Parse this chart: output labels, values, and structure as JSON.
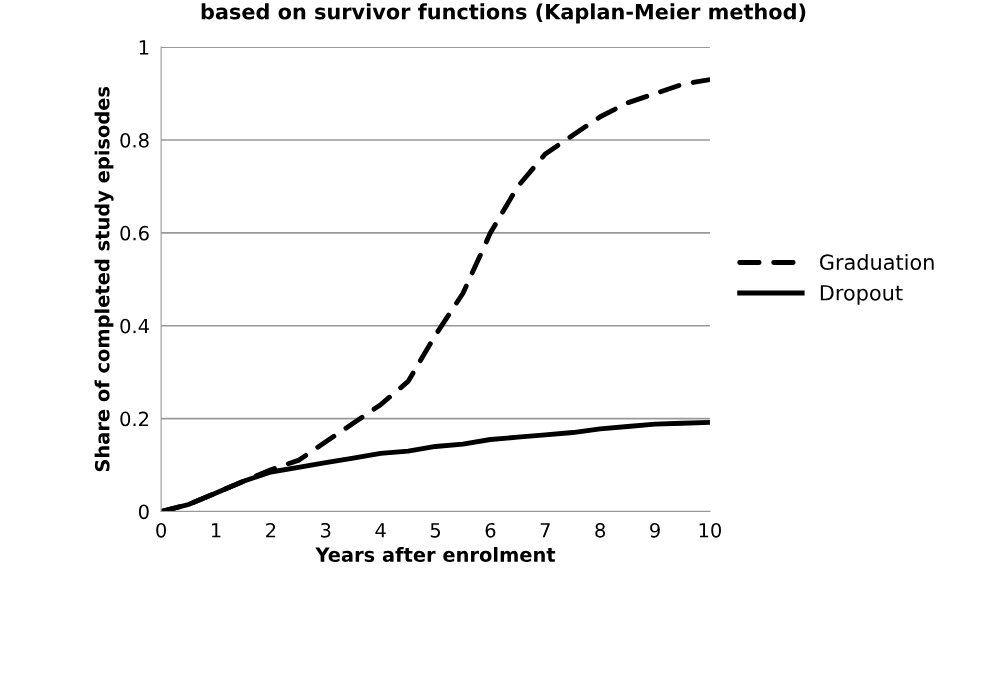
{
  "chart_data": {
    "type": "line",
    "title": "based on survivor functions (Kaplan-Meier method)",
    "xlabel": "Years after enrolment",
    "ylabel": "Share of completed study episodes",
    "xlim": [
      0,
      10
    ],
    "xticks": [
      0,
      1,
      2,
      3,
      4,
      5,
      6,
      7,
      8,
      9,
      10
    ],
    "ylim": [
      0,
      1
    ],
    "yticks": [
      0,
      0.2,
      0.4,
      0.6,
      0.8,
      1
    ],
    "grid": "y",
    "legend": "right",
    "marker": "none",
    "series": [
      {
        "name": "Graduation",
        "color": "#000000",
        "line_style": "dashed",
        "x": [
          0,
          0.5,
          1,
          1.5,
          2,
          2.5,
          3,
          3.5,
          4,
          4.5,
          5,
          5.5,
          6,
          6.5,
          7,
          7.5,
          8,
          8.5,
          9,
          9.5,
          10
        ],
        "values": [
          0,
          0.015,
          0.04,
          0.065,
          0.09,
          0.11,
          0.15,
          0.19,
          0.23,
          0.28,
          0.38,
          0.47,
          0.6,
          0.7,
          0.77,
          0.81,
          0.85,
          0.88,
          0.9,
          0.92,
          0.93
        ]
      },
      {
        "name": "Dropout",
        "color": "#000000",
        "line_style": "solid",
        "x": [
          0,
          0.5,
          1,
          1.5,
          2,
          2.5,
          3,
          3.5,
          4,
          4.5,
          5,
          5.5,
          6,
          6.5,
          7,
          7.5,
          8,
          8.5,
          9,
          9.5,
          10
        ],
        "values": [
          0,
          0.015,
          0.04,
          0.065,
          0.085,
          0.095,
          0.105,
          0.115,
          0.125,
          0.13,
          0.14,
          0.145,
          0.155,
          0.16,
          0.165,
          0.17,
          0.178,
          0.183,
          0.188,
          0.19,
          0.192
        ]
      }
    ]
  }
}
